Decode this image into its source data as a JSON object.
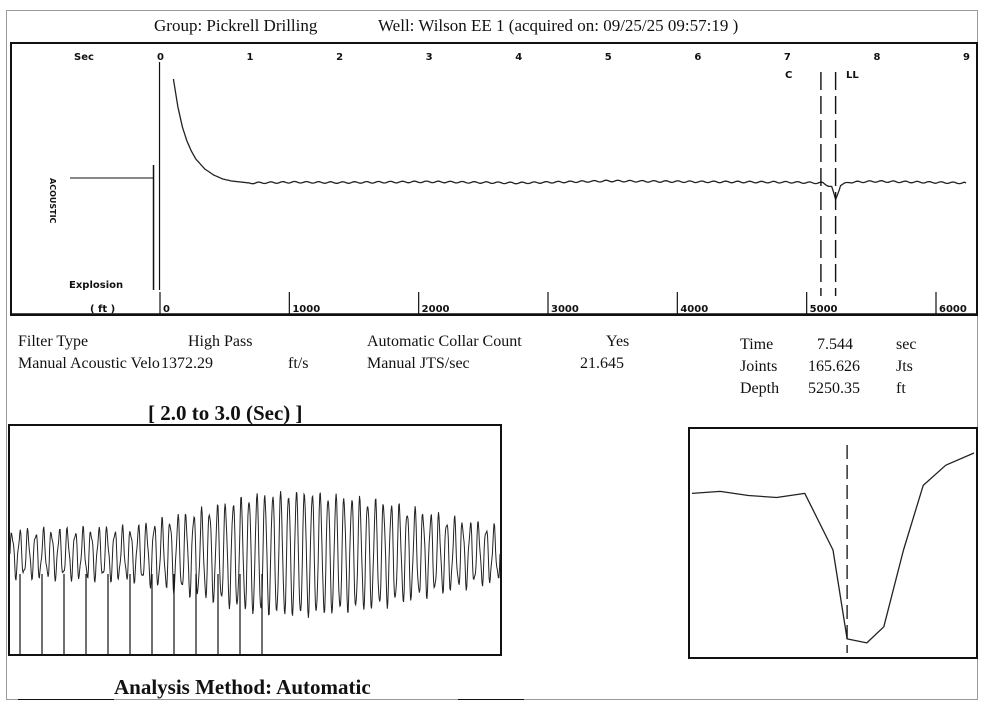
{
  "header": {
    "group": "Group: Pickrell Drilling",
    "well": "Well: Wilson EE 1 (acquired on: 09/25/25 09:57:19 )"
  },
  "main_chart": {
    "x_label": "Sec",
    "depth_label": "( ft )",
    "explosion_label": "Explosion",
    "amplitude_label": "ACOUSTIC",
    "marker_labels": {
      "collar": "C",
      "liquid_level": "LL"
    }
  },
  "params": {
    "filter_type_label": "Filter Type",
    "filter_type_value": "High Pass",
    "velocity_label": "Manual Acoustic Velo",
    "velocity_value": "1372.29",
    "velocity_unit": "ft/s",
    "collar_count_label": "Automatic Collar Count",
    "collar_count_value": "Yes",
    "jts_label": "Manual JTS/sec",
    "jts_value": "21.645"
  },
  "results": {
    "time_label": "Time",
    "time_value": "7.544",
    "time_unit": "sec",
    "joints_label": "Joints",
    "joints_value": "165.626",
    "joints_unit": "Jts",
    "depth_label": "Depth",
    "depth_value": "5250.35",
    "depth_unit": "ft"
  },
  "zoom_title": "[ 2.0  to  3.0 (Sec) ]",
  "analysis_method": "Analysis Method:   Automatic",
  "chart_data": [
    {
      "type": "line",
      "x_sec_ticks": [
        "0",
        "1",
        "2",
        "3",
        "4",
        "5",
        "6",
        "7",
        "8",
        "9"
      ],
      "x_ft_ticks": [
        "0",
        "1000",
        "2000",
        "3000",
        "4000",
        "5000",
        "6000"
      ],
      "xlim_sec": [
        0,
        9
      ],
      "xlim_ft": [
        0,
        6000
      ],
      "explosion_sec": -0.05,
      "collar_marker_sec": 7.38,
      "liquid_level_sec": 7.544,
      "series": [
        {
          "x": [
            0.15,
            0.2,
            0.25,
            0.3,
            0.35,
            0.4,
            0.5,
            0.6,
            0.7,
            0.8,
            1.0,
            1.5,
            2,
            3,
            4,
            5,
            6,
            7,
            7.4,
            7.5,
            7.544,
            7.6,
            7.7,
            8,
            9
          ],
          "y": [
            2.6,
            1.9,
            1.4,
            1.05,
            0.8,
            0.6,
            0.35,
            0.2,
            0.1,
            0.05,
            0.0,
            0.02,
            0.01,
            0.03,
            0.0,
            0.05,
            0.03,
            0.02,
            0.0,
            -0.1,
            -0.42,
            -0.05,
            0.02,
            0.04,
            0.0
          ]
        }
      ],
      "ylim": [
        -1,
        3
      ]
    },
    {
      "type": "line",
      "title": "[ 2.0  to  3.0 (Sec) ]",
      "xlim": [
        2.0,
        3.0
      ],
      "ylim": [
        -1.4,
        1.4
      ],
      "series": [
        {
          "x": [
            2.0,
            2.25,
            2.4,
            2.5,
            2.6,
            2.75,
            2.9,
            3.0
          ],
          "y": [
            0.35,
            0.4,
            0.7,
            0.95,
            1.0,
            0.85,
            0.55,
            0.4
          ]
        }
      ]
    },
    {
      "type": "line",
      "xlim": [
        0,
        1
      ],
      "ylim": [
        0,
        1
      ],
      "marker_x": 0.55,
      "series": [
        {
          "x": [
            0,
            0.1,
            0.2,
            0.3,
            0.4,
            0.5,
            0.55,
            0.62,
            0.68,
            0.75,
            0.82,
            0.9,
            1.0
          ],
          "y": [
            0.78,
            0.79,
            0.77,
            0.76,
            0.78,
            0.5,
            0.06,
            0.04,
            0.12,
            0.5,
            0.82,
            0.92,
            0.98
          ]
        }
      ]
    }
  ]
}
